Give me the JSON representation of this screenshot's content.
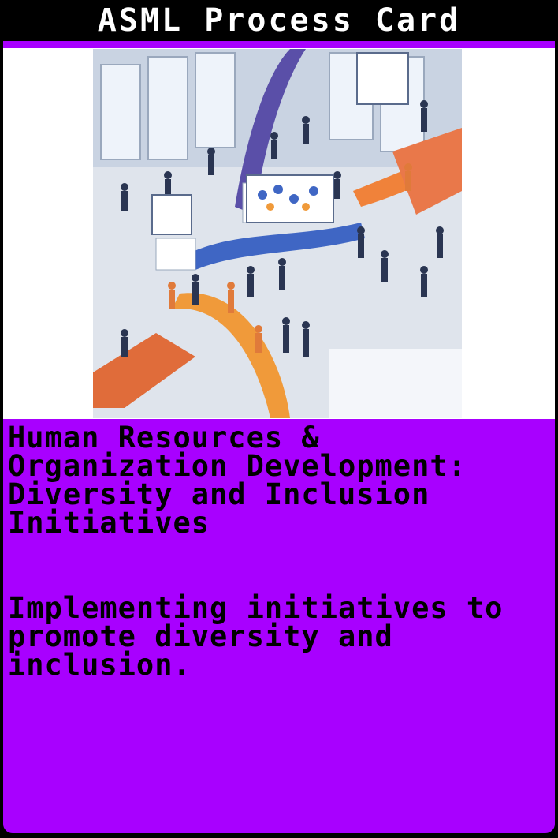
{
  "card": {
    "title": "ASML Process Card",
    "heading": "Human Resources & Organization Development: Diversity and Inclusion Initiatives",
    "description": "Implementing initiatives to promote diversity and inclusion."
  },
  "colors": {
    "frame": "#000000",
    "accent": "#a800ff",
    "title_text": "#ffffff",
    "body_text": "#000000",
    "image_background": "#ffffff"
  },
  "image": {
    "icon": "illustration-icon"
  }
}
